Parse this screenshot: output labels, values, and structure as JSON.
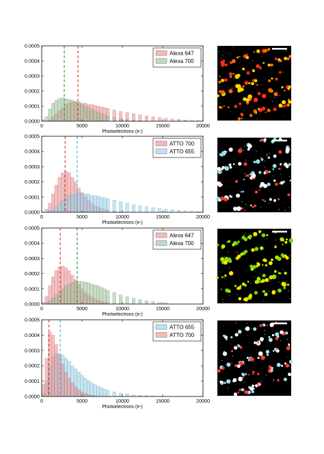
{
  "chart_data": [
    {
      "type": "bar",
      "xlabel": "Photoelectrons (e-)",
      "xlim": [
        0,
        20000
      ],
      "ylim": [
        0,
        0.0005
      ],
      "xticks": [
        "0",
        "5000",
        "10000",
        "15000",
        "20000"
      ],
      "yticks": [
        "0.0000",
        "0.0001",
        "0.0002",
        "0.0003",
        "0.0004",
        "0.0005"
      ],
      "legend_position": "top-right",
      "bin_width": 400,
      "series": [
        {
          "name": "Alexa 647",
          "color": "#f08080",
          "mean_line": 4500,
          "x": [
            0,
            400,
            800,
            1200,
            1600,
            2000,
            2400,
            2800,
            3200,
            3600,
            4000,
            4400,
            4800,
            5200,
            5600,
            6000,
            6400,
            6800,
            7200,
            7600,
            8000,
            8800,
            9600,
            10400,
            11200,
            12000,
            12800,
            13600,
            14400,
            15200,
            16000,
            16800,
            17600,
            18400,
            19200
          ],
          "values": [
            0.0,
            0.0,
            1e-05,
            3e-05,
            5e-05,
            7e-05,
            9e-05,
            0.00011,
            0.00012,
            0.00013,
            0.00013,
            0.00013,
            0.00012,
            0.00012,
            0.00011,
            0.00011,
            0.000105,
            0.0001,
            9.5e-05,
            9e-05,
            8.5e-05,
            7.5e-05,
            6.5e-05,
            5.8e-05,
            5e-05,
            4.3e-05,
            3.6e-05,
            3e-05,
            2.5e-05,
            2e-05,
            1.6e-05,
            1.2e-05,
            9e-06,
            6e-06,
            4e-06
          ]
        },
        {
          "name": "Alexa 700",
          "color": "#8fbc8f",
          "mean_line": 2800,
          "x": [
            0,
            400,
            800,
            1200,
            1600,
            2000,
            2400,
            2800,
            3200,
            3600,
            4000,
            4400,
            4800,
            5200,
            5600,
            6000,
            6400,
            6800,
            7200,
            7600,
            8000,
            8800,
            9600,
            10400,
            11200,
            12000
          ],
          "values": [
            1e-05,
            3e-05,
            8e-05,
            0.00012,
            0.00014,
            0.00015,
            0.000155,
            0.00015,
            0.000145,
            0.00014,
            0.00013,
            0.00012,
            0.00011,
            0.0001,
            9e-05,
            8e-05,
            7e-05,
            6e-05,
            5e-05,
            4.2e-05,
            3.5e-05,
            2.5e-05,
            1.7e-05,
            1.1e-05,
            7e-06,
            4e-06
          ]
        }
      ]
    },
    {
      "type": "bar",
      "xlabel": "Photoelectrons (e-)",
      "xlim": [
        0,
        20000
      ],
      "ylim": [
        0,
        0.0005
      ],
      "xticks": [
        "0",
        "5000",
        "10000",
        "15000",
        "20000"
      ],
      "yticks": [
        "0.0000",
        "0.0001",
        "0.0002",
        "0.0003",
        "0.0004",
        "0.0005"
      ],
      "legend_position": "top-right",
      "bin_width": 400,
      "series": [
        {
          "name": "ATTO 700",
          "color": "#f08080",
          "mean_line": 2900,
          "x": [
            0,
            400,
            800,
            1200,
            1600,
            2000,
            2400,
            2800,
            3200,
            3600,
            4000,
            4400,
            4800,
            5200,
            5600,
            6000,
            6400,
            6800,
            7200,
            7600,
            8000,
            8800,
            9600,
            10400
          ],
          "values": [
            0.0,
            2e-05,
            6e-05,
            0.00012,
            0.00018,
            0.00023,
            0.00026,
            0.00027,
            0.00026,
            0.00023,
            0.0002,
            0.00016,
            0.00013,
            0.0001,
            7.8e-05,
            6e-05,
            4.6e-05,
            3.5e-05,
            2.6e-05,
            1.9e-05,
            1.4e-05,
            8e-06,
            4e-06,
            2e-06
          ]
        },
        {
          "name": "ATTO 655",
          "color": "#87ceeb",
          "mean_line": 4400,
          "x": [
            0,
            400,
            800,
            1200,
            1600,
            2000,
            2400,
            2800,
            3200,
            3600,
            4000,
            4400,
            4800,
            5200,
            5600,
            6000,
            6400,
            6800,
            7200,
            7600,
            8000,
            8800,
            9600,
            10400,
            11200,
            12000,
            12800,
            13600,
            14400,
            15200,
            16000,
            16800,
            17600,
            18400,
            19200
          ],
          "values": [
            0.0,
            0.0,
            1e-05,
            2e-05,
            4e-05,
            6e-05,
            8e-05,
            0.0001,
            0.00011,
            0.00012,
            0.00012,
            0.00013,
            0.00012,
            0.00012,
            0.00012,
            0.00011,
            0.00011,
            0.000105,
            0.0001,
            9.5e-05,
            9e-05,
            8e-05,
            7e-05,
            6e-05,
            5e-05,
            4.4e-05,
            3.7e-05,
            3.1e-05,
            2.6e-05,
            2.1e-05,
            1.7e-05,
            1.3e-05,
            1e-05,
            7e-06,
            5e-06
          ]
        }
      ]
    },
    {
      "type": "bar",
      "xlabel": "Photoelectrons (e-)",
      "xlim": [
        0,
        20000
      ],
      "ylim": [
        0,
        0.0005
      ],
      "xticks": [
        "0",
        "5000",
        "10000",
        "15000",
        "20000"
      ],
      "yticks": [
        "0.0000",
        "0.0001",
        "0.0002",
        "0.0003",
        "0.0004",
        "0.0005"
      ],
      "legend_position": "top-right",
      "bin_width": 400,
      "series": [
        {
          "name": "Alexa 647",
          "color": "#f08080",
          "mean_line": 2300,
          "x": [
            0,
            400,
            800,
            1200,
            1600,
            2000,
            2400,
            2800,
            3200,
            3600,
            4000,
            4400,
            4800,
            5200,
            5600,
            6000,
            6400,
            6800,
            7200,
            7600,
            8000,
            8800
          ],
          "values": [
            1e-05,
            5e-05,
            0.00012,
            0.00018,
            0.00022,
            0.000245,
            0.00025,
            0.00024,
            0.00022,
            0.00019,
            0.00016,
            0.00013,
            0.0001,
            7.8e-05,
            6e-05,
            4.5e-05,
            3.4e-05,
            2.5e-05,
            1.8e-05,
            1.3e-05,
            9e-06,
            4e-06
          ]
        },
        {
          "name": "Alexa 700",
          "color": "#8fbc8f",
          "mean_line": 4400,
          "x": [
            0,
            400,
            800,
            1200,
            1600,
            2000,
            2400,
            2800,
            3200,
            3600,
            4000,
            4400,
            4800,
            5200,
            5600,
            6000,
            6400,
            6800,
            7200,
            7600,
            8000,
            8800,
            9600,
            10400,
            11200,
            12000,
            12800,
            13600,
            14400,
            15200
          ],
          "values": [
            0.0,
            1e-05,
            2e-05,
            4e-05,
            6e-05,
            8e-05,
            0.0001,
            0.00012,
            0.00013,
            0.00014,
            0.00015,
            0.00015,
            0.00015,
            0.000145,
            0.00014,
            0.00013,
            0.000125,
            0.00012,
            0.00011,
            0.0001,
            9e-05,
            7.5e-05,
            6e-05,
            4.8e-05,
            3.8e-05,
            3e-05,
            2.2e-05,
            1.6e-05,
            1.1e-05,
            7e-06
          ]
        }
      ]
    },
    {
      "type": "bar",
      "xlabel": "Photoelectrons (e-)",
      "xlim": [
        0,
        20000
      ],
      "ylim": [
        0,
        0.0005
      ],
      "xticks": [
        "0",
        "5000",
        "10000",
        "15000",
        "20000"
      ],
      "yticks": [
        "0.0000",
        "0.0001",
        "0.0002",
        "0.0003",
        "0.0004",
        "0.0005"
      ],
      "legend_position": "top-right",
      "bin_width": 400,
      "series": [
        {
          "name": "ATTO 655",
          "color": "#87ceeb",
          "mean_line": 2300,
          "x": [
            0,
            400,
            800,
            1200,
            1600,
            2000,
            2400,
            2800,
            3200,
            3600,
            4000,
            4400,
            4800,
            5200,
            5600,
            6000,
            6400,
            6800,
            7200,
            7600,
            8000,
            8800,
            9600,
            10400,
            11200,
            12000,
            12800,
            13600,
            14400
          ],
          "values": [
            2e-05,
            0.0001,
            0.0002,
            0.00026,
            0.00028,
            0.00028,
            0.00027,
            0.00025,
            0.00023,
            0.0002,
            0.00018,
            0.00016,
            0.00014,
            0.00012,
            0.000105,
            9e-05,
            7.8e-05,
            6.7e-05,
            5.7e-05,
            4.8e-05,
            4e-05,
            3e-05,
            2.2e-05,
            1.6e-05,
            1.1e-05,
            8e-06,
            5e-06,
            3e-06,
            2e-06
          ]
        },
        {
          "name": "ATTO 700",
          "color": "#f08080",
          "mean_line": 900,
          "x": [
            0,
            400,
            800,
            1200,
            1600,
            2000,
            2400,
            2800,
            3200,
            3600,
            4000,
            4400,
            4800,
            5200,
            5600,
            6000,
            6400
          ],
          "values": [
            8e-05,
            0.00025,
            0.00042,
            0.0004,
            0.00034,
            0.00027,
            0.00021,
            0.00016,
            0.00012,
            9e-05,
            6.5e-05,
            4.5e-05,
            3e-05,
            2e-05,
            1.3e-05,
            8e-06,
            5e-06
          ]
        }
      ]
    }
  ]
}
